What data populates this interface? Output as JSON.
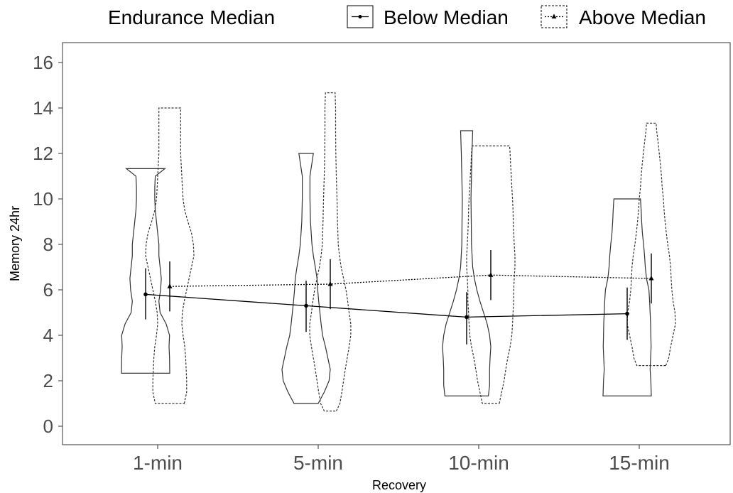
{
  "chart_data": {
    "type": "violin",
    "xlabel": "Recovery",
    "ylabel": "Memory 24hr",
    "ylim": [
      -0.8,
      16.7
    ],
    "yticks": [
      0,
      2,
      4,
      6,
      8,
      10,
      12,
      14,
      16
    ],
    "categories": [
      "1-min",
      "5-min",
      "10-min",
      "15-min"
    ],
    "legend": {
      "title": "Endurance Median",
      "position": "top",
      "entries": [
        "Below Median",
        "Above Median"
      ]
    },
    "grid": false,
    "series": [
      {
        "name": "Below Median",
        "line_style": "solid",
        "marker": "circle",
        "color": "#000000",
        "means": [
          5.8,
          5.3,
          4.8,
          4.95
        ],
        "error_low": [
          4.7,
          4.15,
          3.6,
          3.8
        ],
        "error_high": [
          6.95,
          6.4,
          5.9,
          6.1
        ],
        "violins": [
          {
            "min": 2.33,
            "max": 11.33,
            "profile": [
              [
                2.33,
                1.0
              ],
              [
                3.0,
                0.99
              ],
              [
                3.5,
                0.97
              ],
              [
                4.0,
                0.99
              ],
              [
                4.5,
                0.85
              ],
              [
                5.0,
                0.6
              ],
              [
                5.5,
                0.55
              ],
              [
                6.0,
                0.62
              ],
              [
                6.5,
                0.65
              ],
              [
                7.0,
                0.6
              ],
              [
                7.5,
                0.55
              ],
              [
                8.0,
                0.55
              ],
              [
                8.5,
                0.5
              ],
              [
                9.0,
                0.45
              ],
              [
                9.5,
                0.4
              ],
              [
                10.0,
                0.38
              ],
              [
                10.5,
                0.38
              ],
              [
                11.0,
                0.4
              ],
              [
                11.33,
                0.8
              ]
            ]
          },
          {
            "min": 1.0,
            "max": 12.0,
            "profile": [
              [
                1.0,
                0.5
              ],
              [
                1.5,
                0.75
              ],
              [
                2.0,
                0.95
              ],
              [
                2.5,
                1.0
              ],
              [
                3.0,
                0.9
              ],
              [
                3.5,
                0.8
              ],
              [
                4.0,
                0.68
              ],
              [
                4.5,
                0.62
              ],
              [
                5.0,
                0.57
              ],
              [
                5.5,
                0.52
              ],
              [
                6.0,
                0.48
              ],
              [
                6.5,
                0.45
              ],
              [
                7.0,
                0.38
              ],
              [
                7.5,
                0.3
              ],
              [
                8.0,
                0.24
              ],
              [
                9.0,
                0.18
              ],
              [
                10.0,
                0.16
              ],
              [
                11.0,
                0.16
              ],
              [
                12.0,
                0.3
              ]
            ]
          },
          {
            "min": 1.33,
            "max": 13.0,
            "profile": [
              [
                1.33,
                0.9
              ],
              [
                1.8,
                0.95
              ],
              [
                2.5,
                0.95
              ],
              [
                3.0,
                0.97
              ],
              [
                3.5,
                1.0
              ],
              [
                4.0,
                0.95
              ],
              [
                4.5,
                0.85
              ],
              [
                5.0,
                0.7
              ],
              [
                5.5,
                0.55
              ],
              [
                6.0,
                0.42
              ],
              [
                6.5,
                0.32
              ],
              [
                7.0,
                0.25
              ],
              [
                8.0,
                0.2
              ],
              [
                9.0,
                0.19
              ],
              [
                10.0,
                0.18
              ],
              [
                11.0,
                0.2
              ],
              [
                12.0,
                0.22
              ],
              [
                13.0,
                0.25
              ]
            ]
          },
          {
            "min": 1.33,
            "max": 10.0,
            "profile": [
              [
                1.33,
                1.0
              ],
              [
                2.0,
                0.98
              ],
              [
                2.5,
                0.95
              ],
              [
                3.0,
                0.97
              ],
              [
                3.5,
                0.99
              ],
              [
                4.0,
                0.98
              ],
              [
                4.5,
                0.97
              ],
              [
                5.0,
                0.95
              ],
              [
                5.5,
                0.93
              ],
              [
                6.0,
                0.9
              ],
              [
                6.5,
                0.8
              ],
              [
                7.0,
                0.75
              ],
              [
                7.5,
                0.72
              ],
              [
                8.0,
                0.68
              ],
              [
                8.5,
                0.63
              ],
              [
                9.0,
                0.6
              ],
              [
                9.5,
                0.58
              ],
              [
                10.0,
                0.55
              ]
            ]
          }
        ]
      },
      {
        "name": "Above Median",
        "line_style": "dotted",
        "marker": "triangle",
        "color": "#000000",
        "means": [
          6.15,
          6.25,
          6.65,
          6.5
        ],
        "error_low": [
          5.05,
          5.15,
          5.55,
          5.4
        ],
        "error_high": [
          7.25,
          7.35,
          7.75,
          7.6
        ],
        "violins": [
          {
            "min": 1.0,
            "max": 14.0,
            "profile": [
              [
                1.0,
                0.6
              ],
              [
                1.5,
                0.7
              ],
              [
                2.0,
                0.7
              ],
              [
                2.5,
                0.68
              ],
              [
                3.0,
                0.66
              ],
              [
                3.5,
                0.62
              ],
              [
                4.0,
                0.55
              ],
              [
                4.5,
                0.5
              ],
              [
                5.0,
                0.52
              ],
              [
                5.5,
                0.6
              ],
              [
                6.0,
                0.7
              ],
              [
                6.5,
                0.8
              ],
              [
                7.0,
                0.9
              ],
              [
                7.5,
                1.0
              ],
              [
                8.0,
                0.98
              ],
              [
                8.5,
                0.9
              ],
              [
                9.0,
                0.75
              ],
              [
                9.5,
                0.62
              ],
              [
                10.0,
                0.55
              ],
              [
                10.5,
                0.52
              ],
              [
                11.0,
                0.5
              ],
              [
                12.0,
                0.45
              ],
              [
                13.0,
                0.45
              ],
              [
                14.0,
                0.45
              ]
            ]
          },
          {
            "min": 0.67,
            "max": 14.67,
            "profile": [
              [
                0.67,
                0.25
              ],
              [
                1.0,
                0.4
              ],
              [
                1.5,
                0.48
              ],
              [
                2.0,
                0.55
              ],
              [
                2.5,
                0.62
              ],
              [
                3.0,
                0.7
              ],
              [
                3.5,
                0.78
              ],
              [
                4.0,
                0.85
              ],
              [
                4.5,
                0.85
              ],
              [
                5.0,
                0.78
              ],
              [
                5.5,
                0.72
              ],
              [
                6.0,
                0.65
              ],
              [
                6.5,
                0.55
              ],
              [
                7.0,
                0.45
              ],
              [
                7.5,
                0.38
              ],
              [
                8.0,
                0.33
              ],
              [
                9.0,
                0.3
              ],
              [
                10.0,
                0.28
              ],
              [
                11.0,
                0.25
              ],
              [
                12.0,
                0.23
              ],
              [
                13.0,
                0.22
              ],
              [
                14.0,
                0.22
              ],
              [
                14.67,
                0.2
              ]
            ]
          },
          {
            "min": 1.0,
            "max": 12.33,
            "profile": [
              [
                1.0,
                0.35
              ],
              [
                1.5,
                0.45
              ],
              [
                2.0,
                0.55
              ],
              [
                2.5,
                0.62
              ],
              [
                3.0,
                0.7
              ],
              [
                3.5,
                0.8
              ],
              [
                4.0,
                0.87
              ],
              [
                4.5,
                0.9
              ],
              [
                5.0,
                0.92
              ],
              [
                5.5,
                0.95
              ],
              [
                6.0,
                0.95
              ],
              [
                6.5,
                0.97
              ],
              [
                7.0,
                1.0
              ],
              [
                7.5,
                1.0
              ],
              [
                8.0,
                0.97
              ],
              [
                8.5,
                0.95
              ],
              [
                9.0,
                0.93
              ],
              [
                9.5,
                0.92
              ],
              [
                10.0,
                0.9
              ],
              [
                10.5,
                0.87
              ],
              [
                11.0,
                0.85
              ],
              [
                11.5,
                0.82
              ],
              [
                12.0,
                0.8
              ],
              [
                12.33,
                0.78
              ]
            ]
          },
          {
            "min": 2.67,
            "max": 13.33,
            "profile": [
              [
                2.67,
                0.6
              ],
              [
                3.0,
                0.72
              ],
              [
                3.5,
                0.8
              ],
              [
                4.0,
                0.9
              ],
              [
                4.5,
                1.0
              ],
              [
                5.0,
                0.98
              ],
              [
                5.5,
                0.9
              ],
              [
                6.0,
                0.85
              ],
              [
                6.5,
                0.82
              ],
              [
                7.0,
                0.8
              ],
              [
                7.5,
                0.75
              ],
              [
                8.0,
                0.68
              ],
              [
                8.5,
                0.62
              ],
              [
                9.0,
                0.57
              ],
              [
                9.5,
                0.53
              ],
              [
                10.0,
                0.5
              ],
              [
                10.5,
                0.45
              ],
              [
                11.0,
                0.42
              ],
              [
                11.5,
                0.38
              ],
              [
                12.0,
                0.33
              ],
              [
                12.5,
                0.28
              ],
              [
                13.0,
                0.22
              ],
              [
                13.33,
                0.2
              ]
            ]
          }
        ]
      }
    ]
  }
}
